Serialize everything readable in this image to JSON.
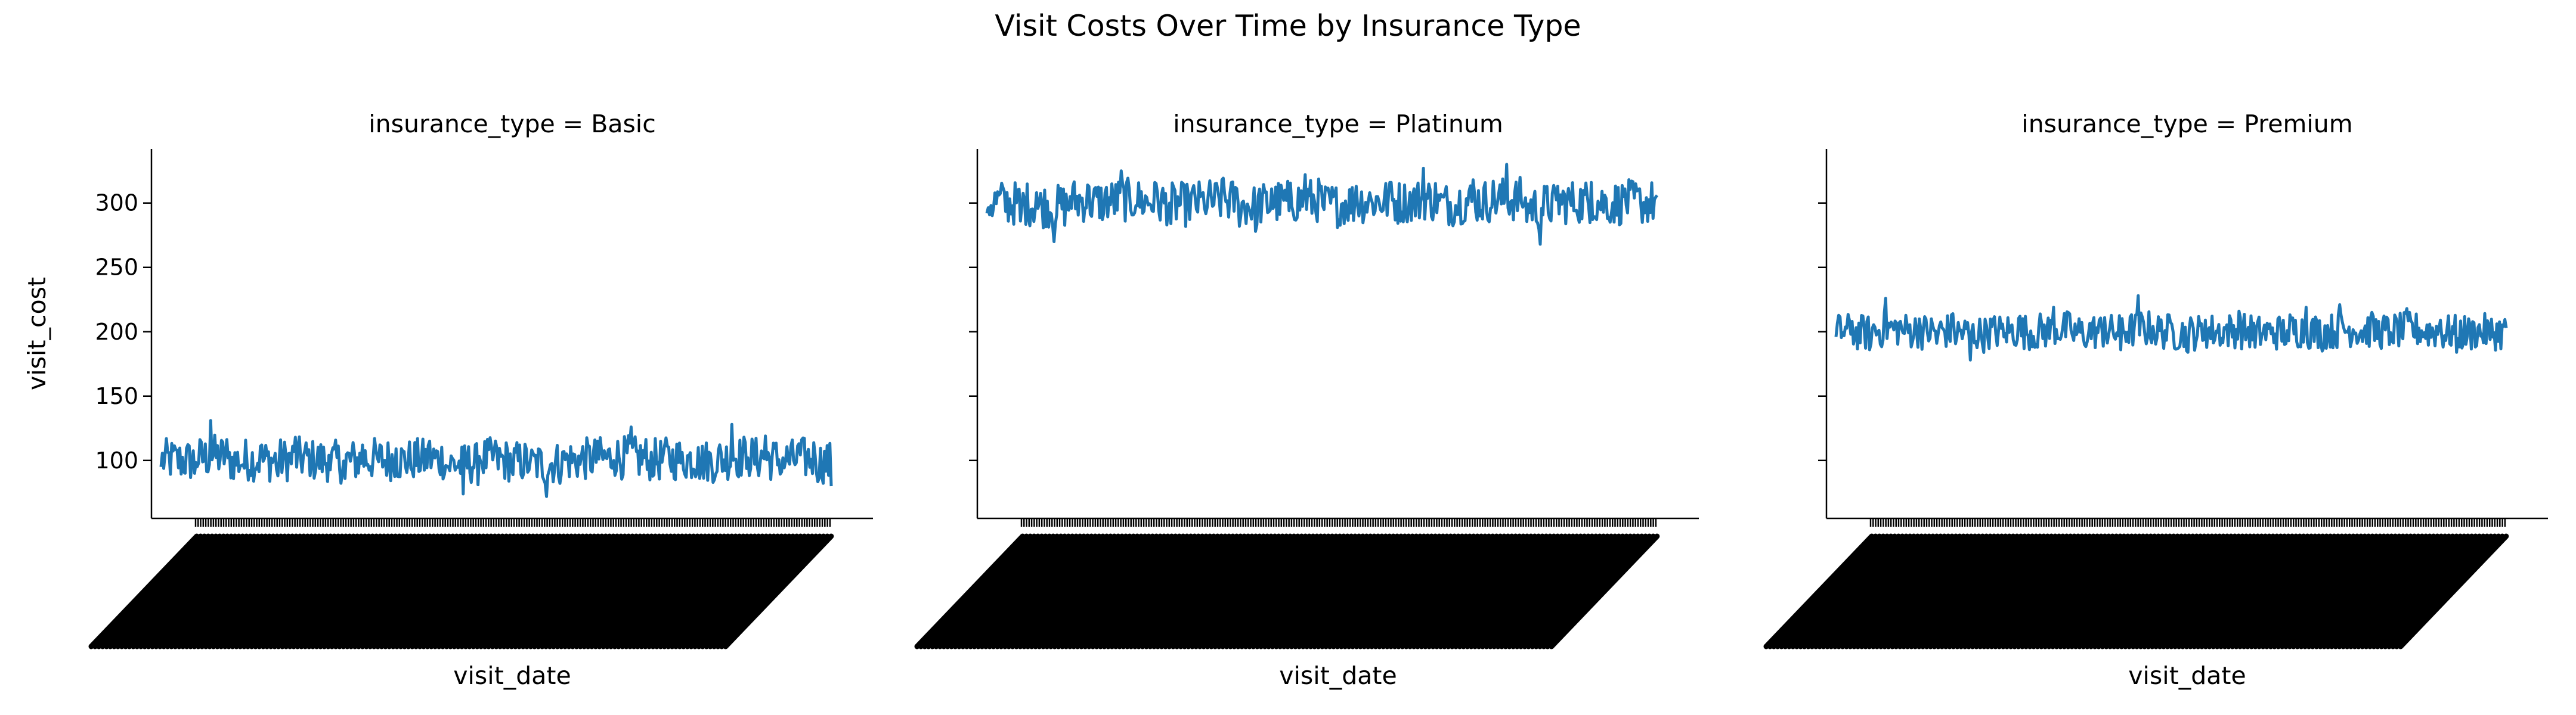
{
  "chart_data": {
    "type": "line",
    "title": "Visit Costs Over Time by Insurance Type",
    "xlabel": "visit_date",
    "ylabel": "visit_cost",
    "facet_variable": "insurance_type",
    "ylim": [
      55,
      342
    ],
    "yticks": [
      100,
      150,
      200,
      250,
      300
    ],
    "grid": false,
    "color": "#1f77b4",
    "points_per_panel": 500,
    "panels": [
      {
        "facet_title": "insurance_type = Basic",
        "insurance_type": "Basic",
        "mean": 100,
        "min": 72,
        "max": 132,
        "series": [
          {
            "x": 0,
            "y": 95
          },
          {
            "x": 12,
            "y": 108
          },
          {
            "x": 25,
            "y": 90
          },
          {
            "x": 37,
            "y": 131
          },
          {
            "x": 50,
            "y": 102
          },
          {
            "x": 62,
            "y": 94
          },
          {
            "x": 75,
            "y": 112
          },
          {
            "x": 87,
            "y": 88
          },
          {
            "x": 100,
            "y": 118
          },
          {
            "x": 112,
            "y": 97
          },
          {
            "x": 125,
            "y": 104
          },
          {
            "x": 137,
            "y": 86
          },
          {
            "x": 150,
            "y": 112
          },
          {
            "x": 162,
            "y": 99
          },
          {
            "x": 175,
            "y": 109
          },
          {
            "x": 187,
            "y": 92
          },
          {
            "x": 200,
            "y": 115
          },
          {
            "x": 212,
            "y": 96
          },
          {
            "x": 225,
            "y": 74
          },
          {
            "x": 237,
            "y": 103
          },
          {
            "x": 250,
            "y": 110
          },
          {
            "x": 262,
            "y": 89
          },
          {
            "x": 275,
            "y": 100
          },
          {
            "x": 287,
            "y": 72
          },
          {
            "x": 300,
            "y": 107
          },
          {
            "x": 312,
            "y": 97
          },
          {
            "x": 325,
            "y": 115
          },
          {
            "x": 337,
            "y": 100
          },
          {
            "x": 350,
            "y": 126
          },
          {
            "x": 362,
            "y": 93
          },
          {
            "x": 375,
            "y": 112
          },
          {
            "x": 387,
            "y": 98
          },
          {
            "x": 400,
            "y": 110
          },
          {
            "x": 412,
            "y": 85
          },
          {
            "x": 425,
            "y": 128
          },
          {
            "x": 437,
            "y": 102
          },
          {
            "x": 450,
            "y": 119
          },
          {
            "x": 462,
            "y": 91
          },
          {
            "x": 475,
            "y": 113
          },
          {
            "x": 487,
            "y": 104
          },
          {
            "x": 499,
            "y": 80
          }
        ]
      },
      {
        "facet_title": "insurance_type = Platinum",
        "insurance_type": "Platinum",
        "mean": 300,
        "min": 268,
        "max": 330,
        "series": [
          {
            "x": 0,
            "y": 292
          },
          {
            "x": 12,
            "y": 312
          },
          {
            "x": 25,
            "y": 286
          },
          {
            "x": 37,
            "y": 308
          },
          {
            "x": 50,
            "y": 270
          },
          {
            "x": 62,
            "y": 305
          },
          {
            "x": 75,
            "y": 314
          },
          {
            "x": 87,
            "y": 292
          },
          {
            "x": 100,
            "y": 325
          },
          {
            "x": 112,
            "y": 298
          },
          {
            "x": 125,
            "y": 316
          },
          {
            "x": 137,
            "y": 284
          },
          {
            "x": 150,
            "y": 306
          },
          {
            "x": 162,
            "y": 296
          },
          {
            "x": 175,
            "y": 318
          },
          {
            "x": 187,
            "y": 301
          },
          {
            "x": 200,
            "y": 278
          },
          {
            "x": 212,
            "y": 311
          },
          {
            "x": 225,
            "y": 294
          },
          {
            "x": 237,
            "y": 322
          },
          {
            "x": 250,
            "y": 298
          },
          {
            "x": 262,
            "y": 287
          },
          {
            "x": 275,
            "y": 313
          },
          {
            "x": 287,
            "y": 300
          },
          {
            "x": 300,
            "y": 316
          },
          {
            "x": 312,
            "y": 290
          },
          {
            "x": 325,
            "y": 327
          },
          {
            "x": 337,
            "y": 302
          },
          {
            "x": 350,
            "y": 291
          },
          {
            "x": 362,
            "y": 318
          },
          {
            "x": 375,
            "y": 296
          },
          {
            "x": 387,
            "y": 330
          },
          {
            "x": 400,
            "y": 299
          },
          {
            "x": 412,
            "y": 268
          },
          {
            "x": 425,
            "y": 313
          },
          {
            "x": 437,
            "y": 294
          },
          {
            "x": 450,
            "y": 316
          },
          {
            "x": 462,
            "y": 288
          },
          {
            "x": 475,
            "y": 311
          },
          {
            "x": 487,
            "y": 297
          },
          {
            "x": 499,
            "y": 306
          }
        ]
      },
      {
        "facet_title": "insurance_type = Premium",
        "insurance_type": "Premium",
        "mean": 200,
        "min": 178,
        "max": 228,
        "series": [
          {
            "x": 0,
            "y": 196
          },
          {
            "x": 12,
            "y": 208
          },
          {
            "x": 25,
            "y": 186
          },
          {
            "x": 37,
            "y": 226
          },
          {
            "x": 50,
            "y": 199
          },
          {
            "x": 62,
            "y": 210
          },
          {
            "x": 75,
            "y": 191
          },
          {
            "x": 87,
            "y": 214
          },
          {
            "x": 100,
            "y": 178
          },
          {
            "x": 112,
            "y": 205
          },
          {
            "x": 125,
            "y": 196
          },
          {
            "x": 137,
            "y": 212
          },
          {
            "x": 150,
            "y": 188
          },
          {
            "x": 162,
            "y": 219
          },
          {
            "x": 175,
            "y": 201
          },
          {
            "x": 187,
            "y": 192
          },
          {
            "x": 200,
            "y": 211
          },
          {
            "x": 212,
            "y": 186
          },
          {
            "x": 225,
            "y": 228
          },
          {
            "x": 237,
            "y": 197
          },
          {
            "x": 250,
            "y": 206
          },
          {
            "x": 262,
            "y": 184
          },
          {
            "x": 275,
            "y": 209
          },
          {
            "x": 287,
            "y": 195
          },
          {
            "x": 300,
            "y": 216
          },
          {
            "x": 312,
            "y": 188
          },
          {
            "x": 325,
            "y": 203
          },
          {
            "x": 337,
            "y": 193
          },
          {
            "x": 350,
            "y": 219
          },
          {
            "x": 362,
            "y": 185
          },
          {
            "x": 375,
            "y": 221
          },
          {
            "x": 387,
            "y": 199
          },
          {
            "x": 400,
            "y": 212
          },
          {
            "x": 412,
            "y": 190
          },
          {
            "x": 425,
            "y": 218
          },
          {
            "x": 437,
            "y": 196
          },
          {
            "x": 450,
            "y": 209
          },
          {
            "x": 462,
            "y": 184
          },
          {
            "x": 475,
            "y": 207
          },
          {
            "x": 487,
            "y": 194
          },
          {
            "x": 499,
            "y": 203
          }
        ]
      }
    ]
  }
}
